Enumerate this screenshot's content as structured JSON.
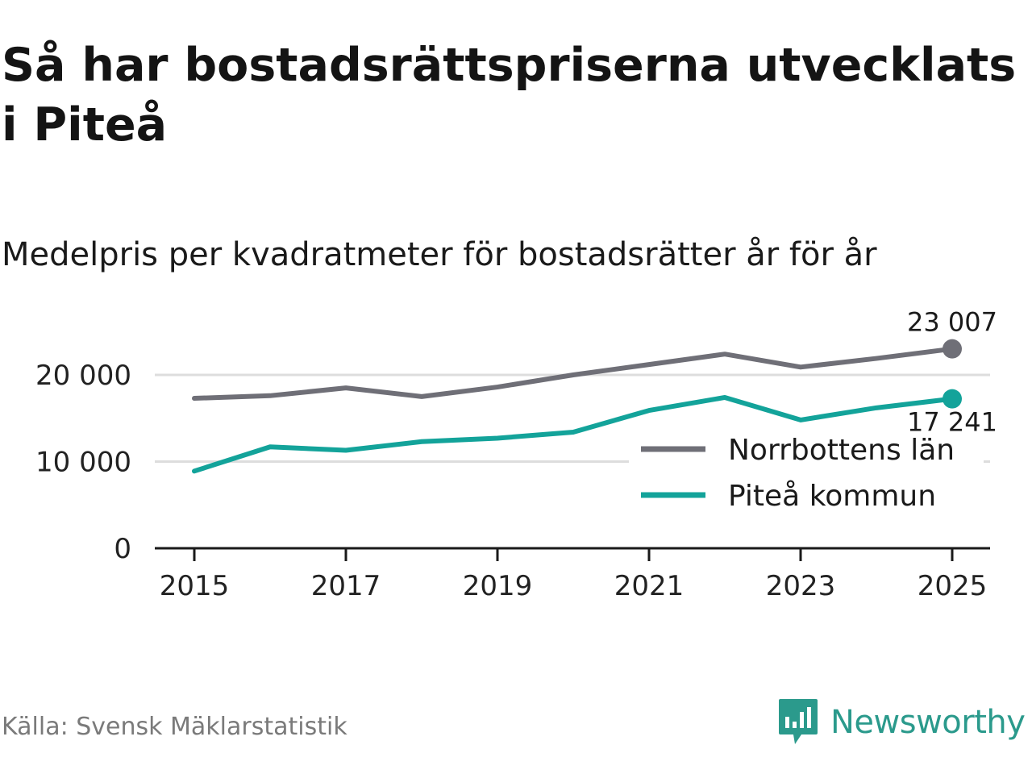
{
  "title": "Så har bostadsrättspriserna utvecklats i Piteå",
  "subtitle": "Medelpris per kvadratmeter för bostadsrätter år för år",
  "source": "Källa: Svensk Mäklarstatistik",
  "brand": "Newsworthy",
  "colors": {
    "norrbotten": "#6f6f77",
    "pitea": "#13a39a",
    "grid": "#dddddd",
    "axis": "#1a1a1a",
    "brand": "#2b9a8c"
  },
  "chart_data": {
    "type": "line",
    "title": "Medelpris per kvadratmeter för bostadsrätter år för år",
    "xlabel": "",
    "ylabel": "",
    "x": [
      2015,
      2016,
      2017,
      2018,
      2019,
      2020,
      2021,
      2022,
      2023,
      2024,
      2025
    ],
    "xticks": [
      "2015",
      "2017",
      "2019",
      "2021",
      "2023",
      "2025"
    ],
    "ylim": [
      0,
      25000
    ],
    "yticks": [
      0,
      10000,
      20000
    ],
    "ytick_labels": [
      "0",
      "10 000",
      "20 000"
    ],
    "grid": true,
    "legend_position": "right",
    "series": [
      {
        "name": "Norrbottens län",
        "color": "#6f6f77",
        "values": [
          17300,
          17600,
          18500,
          17500,
          18600,
          20000,
          21200,
          22400,
          20900,
          21900,
          23007
        ],
        "end_label": "23 007"
      },
      {
        "name": "Piteå kommun",
        "color": "#13a39a",
        "values": [
          8900,
          11700,
          11300,
          12300,
          12700,
          13400,
          15900,
          17400,
          14800,
          16200,
          17241
        ],
        "end_label": "17 241"
      }
    ]
  }
}
